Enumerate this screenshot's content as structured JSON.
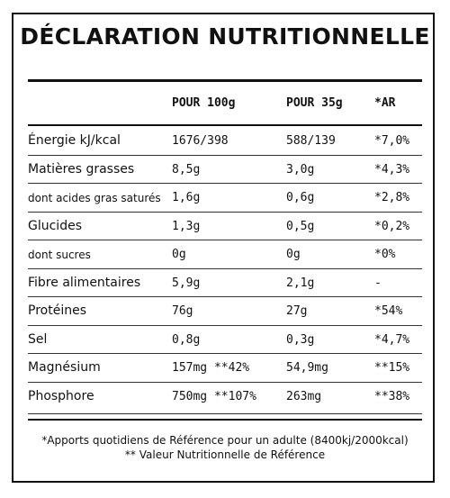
{
  "title": "DÉCLARATION NUTRITIONNELLE",
  "headers": {
    "per100": "POUR 100g",
    "per35": "POUR 35g",
    "ar": "*AR"
  },
  "rows": [
    {
      "label": "Énergie kJ/kcal",
      "per100": "1676/398",
      "per35": "588/139",
      "ar": "*7,0%"
    },
    {
      "label": "Matières grasses",
      "per100": "8,5g",
      "per35": "3,0g",
      "ar": "*4,3%"
    },
    {
      "label": "dont acides gras saturés",
      "per100": "1,6g",
      "per35": "0,6g",
      "ar": "*2,8%"
    },
    {
      "label": "Glucides",
      "per100": "1,3g",
      "per35": "0,5g",
      "ar": "*0,2%"
    },
    {
      "label": "dont sucres",
      "per100": "0g",
      "per35": "0g",
      "ar": "*0%"
    },
    {
      "label": "Fibre alimentaires",
      "per100": "5,9g",
      "per35": "2,1g",
      "ar": "-"
    },
    {
      "label": "Protéines",
      "per100": "76g",
      "per35": "27g",
      "ar": "*54%"
    },
    {
      "label": "Sel",
      "per100": "0,8g",
      "per35": "0,3g",
      "ar": "*4,7%"
    },
    {
      "label": "Magnésium",
      "per100": "157mg **42%",
      "per35": "54,9mg",
      "ar": "**15%"
    },
    {
      "label": "Phosphore",
      "per100": "750mg **107%",
      "per35": "263mg",
      "ar": "**38%"
    }
  ],
  "footer": {
    "line1": "*Apports quotidiens de Référence pour un adulte (8400kj/2000kcal)",
    "line2": "** Valeur Nutritionnelle de Référence"
  }
}
